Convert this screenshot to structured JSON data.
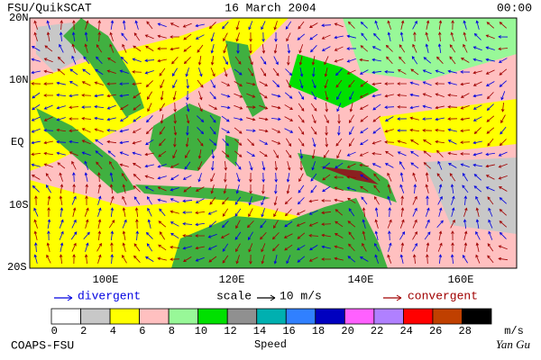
{
  "header": {
    "left": "FSU/QuikSCAT",
    "center": "16 March 2004",
    "right": "00:00"
  },
  "axes": {
    "lat_labels": [
      "20N",
      "10N",
      "EQ",
      "10S",
      "20S"
    ],
    "lon_labels": [
      "100E",
      "120E",
      "140E",
      "160E"
    ]
  },
  "legend": {
    "divergent": "divergent",
    "scale": "scale",
    "scale_value": "10 m/s",
    "convergent": "convergent",
    "divergent_color": "#0000e0",
    "convergent_color": "#a00000"
  },
  "colorbar": {
    "colors": [
      "#ffffff",
      "#c8c8c8",
      "#ffff00",
      "#ffc0c0",
      "#98f898",
      "#00e000",
      "#909090",
      "#00b0b0",
      "#3080ff",
      "#0000c0",
      "#ff60ff",
      "#b080ff",
      "#ff0000",
      "#c04000",
      "#000000"
    ],
    "ticks": [
      0,
      2,
      4,
      6,
      8,
      10,
      12,
      14,
      16,
      18,
      20,
      22,
      24,
      26,
      28
    ],
    "unit": "m/s",
    "label": "Speed"
  },
  "footer": {
    "left": "COAPS-FSU",
    "right": "Yan Gu"
  }
}
